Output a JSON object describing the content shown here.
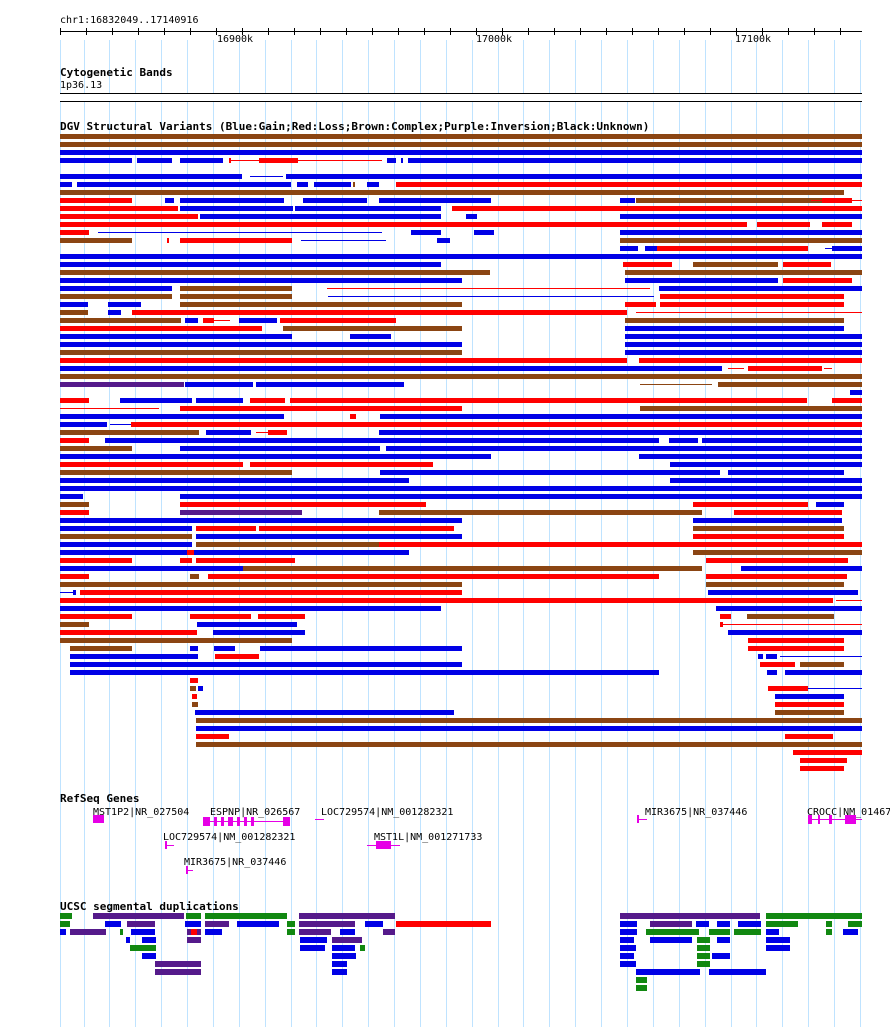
{
  "position": "chr1:16832049..17140916",
  "ruler_ticks": [
    "16900k",
    "17000k",
    "17100k"
  ],
  "tracks": {
    "cytoband": {
      "title": "Cytogenetic Bands",
      "band": "1p36.13"
    },
    "dgv": {
      "title": "DGV Structural Variants (Blue:Gain;Red:Loss;Brown:Complex;Purple:Inversion;Black:Unknown)"
    },
    "refseq": {
      "title": "RefSeq Genes",
      "genes": [
        "MST1P2|NR_027504",
        "ESPNP|NR_026567",
        "LOC729574|NM_001282321",
        "LOC729574|NM_001282321",
        "MST1L|NM_001271733",
        "MIR3675|NR_037446",
        "MIR3675|NR_037446",
        "CROCC|NM_01467"
      ]
    },
    "segdups": {
      "title": "UCSC segmental duplications"
    }
  },
  "colors": {
    "gain": "#0000e6",
    "loss": "#ff0000",
    "complex": "#8b4513",
    "inversion": "#551a8b",
    "gene": "#e600e6",
    "segdup_green": "#118811",
    "grid": "#bfe3ff"
  }
}
